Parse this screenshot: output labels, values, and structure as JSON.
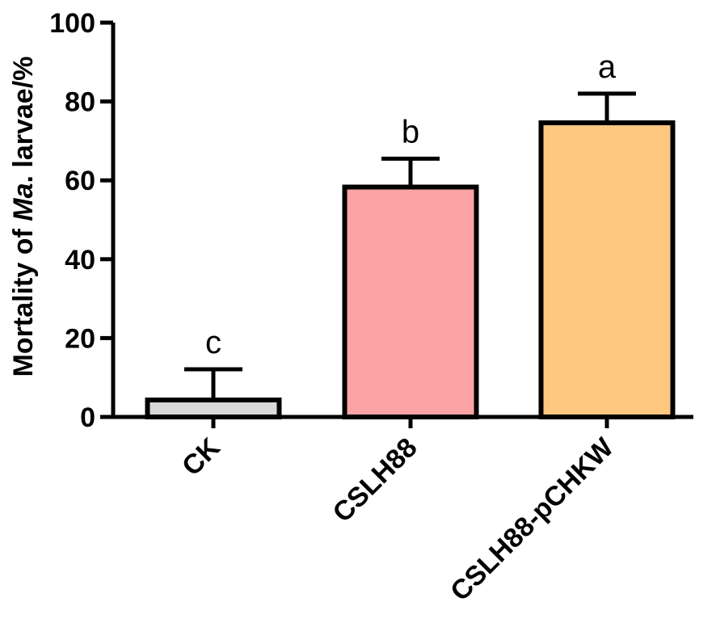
{
  "chart_data": {
    "type": "bar",
    "title": "",
    "xlabel": "",
    "ylabel": {
      "prefix": "Mortality of ",
      "italic": "Ma",
      "suffix": ". larvae/%"
    },
    "ylim": [
      0,
      100
    ],
    "yticks": [
      "0",
      "20",
      "40",
      "60",
      "80",
      "100"
    ],
    "categories": [
      "CK",
      "CSLH88",
      "CSLH88-pCHKW"
    ],
    "values": [
      4.3,
      58.3,
      74.6
    ],
    "errors": [
      7.8,
      7.2,
      7.4
    ],
    "significance": [
      "c",
      "b",
      "a"
    ],
    "colors": [
      "#d9d9d9",
      "#fca3a6",
      "#fec780"
    ],
    "grid": false,
    "legend": "none"
  }
}
